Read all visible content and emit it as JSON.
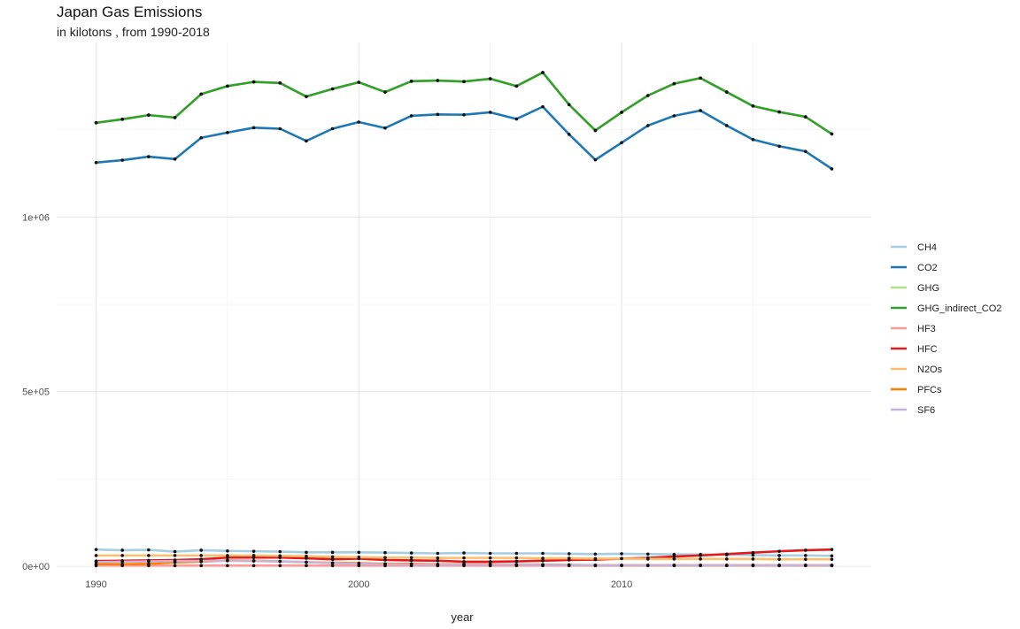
{
  "chart_data": {
    "type": "line",
    "title": "Japan Gas Emissions",
    "subtitle": "in kilotons , from 1990-2018",
    "xlabel": "year",
    "ylabel": "",
    "xlim": [
      1988.5,
      2019.5
    ],
    "ylim": [
      -20000,
      1500000
    ],
    "x_ticks": [
      1990,
      2000,
      2010
    ],
    "y_ticks": [
      0,
      500000,
      1000000
    ],
    "y_tick_labels": [
      "0e+00",
      "5e+05",
      "1e+06"
    ],
    "grid": true,
    "legend_position": "right",
    "x": [
      1990,
      1991,
      1992,
      1993,
      1994,
      1995,
      1996,
      1997,
      1998,
      1999,
      2000,
      2001,
      2002,
      2003,
      2004,
      2005,
      2006,
      2007,
      2008,
      2009,
      2010,
      2011,
      2012,
      2013,
      2014,
      2015,
      2016,
      2017,
      2018
    ],
    "series": [
      {
        "name": "CH4",
        "color": "#a6cee3",
        "values": [
          48000,
          46000,
          47000,
          42000,
          46000,
          44000,
          43000,
          42000,
          40000,
          40000,
          40000,
          39000,
          38000,
          37000,
          38000,
          37000,
          37000,
          37000,
          36000,
          35000,
          36000,
          35000,
          34000,
          34000,
          33000,
          32000,
          31000,
          31000,
          30000
        ]
      },
      {
        "name": "CO2",
        "color": "#1f78b4",
        "values": [
          1156000,
          1163000,
          1173000,
          1166000,
          1227000,
          1242000,
          1256000,
          1253000,
          1218000,
          1253000,
          1272000,
          1255000,
          1290000,
          1294000,
          1293000,
          1300000,
          1281000,
          1316000,
          1237000,
          1164000,
          1213000,
          1262000,
          1290000,
          1305000,
          1262000,
          1222000,
          1203000,
          1188000,
          1138000
        ]
      },
      {
        "name": "GHG",
        "color": "#b2df8a",
        "values": [
          1270000,
          1280000,
          1292000,
          1285000,
          1352000,
          1375000,
          1387000,
          1384000,
          1345000,
          1367000,
          1386000,
          1358000,
          1389000,
          1391000,
          1388000,
          1396000,
          1375000,
          1414000,
          1322000,
          1248000,
          1300000,
          1348000,
          1382000,
          1398000,
          1358000,
          1318000,
          1301000,
          1287000,
          1238000
        ]
      },
      {
        "name": "GHG_indirect_CO2",
        "color": "#33a02c",
        "values": [
          1270000,
          1280000,
          1292000,
          1285000,
          1352000,
          1375000,
          1387000,
          1384000,
          1345000,
          1367000,
          1386000,
          1358000,
          1389000,
          1391000,
          1388000,
          1396000,
          1375000,
          1414000,
          1322000,
          1248000,
          1300000,
          1348000,
          1382000,
          1398000,
          1358000,
          1318000,
          1301000,
          1287000,
          1238000
        ]
      },
      {
        "name": "HF3",
        "color": "#fb9a99",
        "values": [
          2000,
          2000,
          2000,
          2000,
          2000,
          2000,
          2000,
          2000,
          2000,
          2000,
          2000,
          2000,
          2000,
          2000,
          2000,
          2000,
          2000,
          2000,
          2000,
          2000,
          2000,
          2000,
          2000,
          2000,
          2000,
          2000,
          2000,
          2000,
          2000
        ]
      },
      {
        "name": "HFC",
        "color": "#e31a1c",
        "values": [
          15000,
          16000,
          17000,
          18000,
          20000,
          25000,
          25000,
          25000,
          23000,
          20000,
          22000,
          18000,
          17000,
          16000,
          13000,
          13000,
          14000,
          16000,
          18000,
          19000,
          22000,
          24000,
          28000,
          31000,
          35000,
          39000,
          43000,
          46000,
          48000
        ]
      },
      {
        "name": "N2Os",
        "color": "#fdbf6f",
        "values": [
          31000,
          31000,
          31000,
          31000,
          31000,
          31000,
          31000,
          30000,
          29000,
          27000,
          26000,
          25000,
          25000,
          24000,
          24000,
          24000,
          24000,
          23000,
          23000,
          22000,
          22000,
          21000,
          21000,
          21000,
          21000,
          21000,
          20000,
          20000,
          20000
        ]
      },
      {
        "name": "PFCs",
        "color": "#ff7f00",
        "values": [
          6000,
          6000,
          7000,
          11000,
          13000,
          17000,
          16000,
          14000,
          12000,
          10000,
          9000,
          7000,
          7000,
          6000,
          6000,
          6000,
          5000,
          5000,
          4000,
          3000,
          3000,
          3000,
          3000,
          3000,
          3000,
          3000,
          3000,
          3000,
          3000
        ]
      },
      {
        "name": "SF6",
        "color": "#cab2d6",
        "values": [
          12000,
          13000,
          14000,
          15000,
          15000,
          16000,
          15000,
          14000,
          12000,
          9000,
          7000,
          6000,
          5000,
          5000,
          5000,
          5000,
          5000,
          4000,
          4000,
          3000,
          3000,
          3000,
          3000,
          3000,
          3000,
          3000,
          3000,
          3000,
          3000
        ]
      }
    ]
  }
}
